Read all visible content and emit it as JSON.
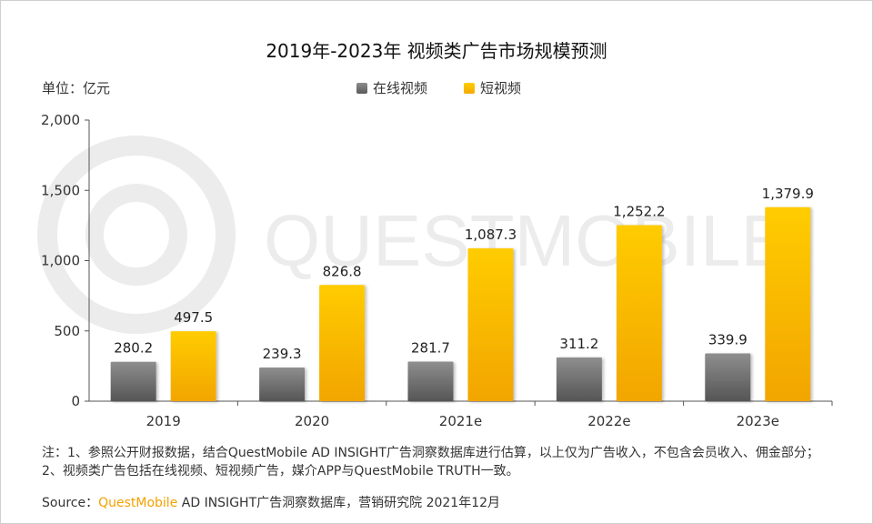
{
  "title": "2019年-2023年 视频类广告市场规模预测",
  "unit_label": "单位：亿元",
  "watermark": "QUESTMOBILE",
  "legend": [
    {
      "name": "在线视频",
      "color": "#7a7a7a"
    },
    {
      "name": "短视频",
      "color": "#ffc000"
    }
  ],
  "note": "注：1、参照公开财报数据，结合QuestMobile AD INSIGHT广告洞察数据库进行估算，以上仅为广告收入，不包含会员收入、佣金部分；2、视频类广告包括在线视频、短视频广告，媒介APP与QuestMobile TRUTH一致。",
  "source": {
    "prefix": "Source：",
    "brand": "QuestMobile",
    "rest": " AD INSIGHT广告洞察数据库，营销研究院 2021年12月"
  },
  "chart_data": {
    "type": "bar",
    "title": "2019年-2023年 视频类广告市场规模预测",
    "categories": [
      "2019",
      "2020",
      "2021e",
      "2022e",
      "2023e"
    ],
    "series": [
      {
        "name": "在线视频",
        "values": [
          280.2,
          239.3,
          281.7,
          311.2,
          339.9
        ],
        "labels": [
          "280.2",
          "239.3",
          "281.7",
          "311.2",
          "339.9"
        ],
        "color": "#7a7a7a"
      },
      {
        "name": "短视频",
        "values": [
          497.5,
          826.8,
          1087.3,
          1252.2,
          1379.9
        ],
        "labels": [
          "497.5",
          "826.8",
          "1,087.3",
          "1,252.2",
          "1,379.9"
        ],
        "color": "#ffc000"
      }
    ],
    "ylim": [
      0,
      2000
    ],
    "yticks": [
      0,
      500,
      1000,
      1500,
      2000
    ],
    "ytick_labels": [
      "0",
      "500",
      "1,000",
      "1,500",
      "2,000"
    ],
    "ylabel": "单位：亿元",
    "grid": false,
    "legend_position": "top-center"
  }
}
